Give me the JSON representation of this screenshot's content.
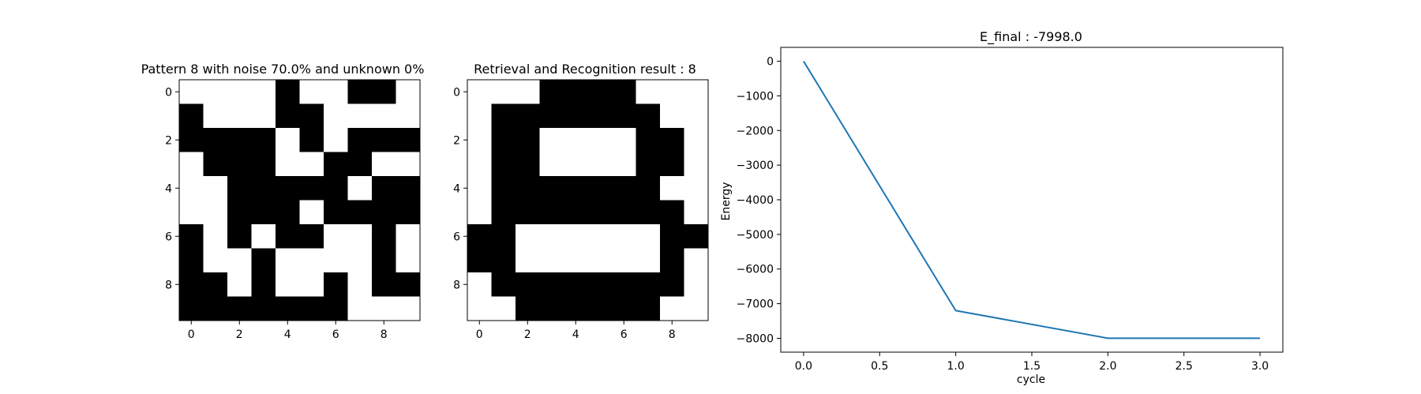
{
  "chart_data": [
    {
      "type": "heatmap",
      "title": "Pattern 8 with noise 70.0% and unknown 0%",
      "colors": {
        "1": "#000000",
        "0": "#ffffff"
      },
      "x_ticks": [
        "0",
        "2",
        "4",
        "6",
        "8"
      ],
      "y_ticks": [
        "0",
        "2",
        "4",
        "6",
        "8"
      ],
      "grid": [
        [
          0,
          0,
          0,
          0,
          1,
          0,
          0,
          1,
          1,
          0
        ],
        [
          1,
          0,
          0,
          0,
          1,
          1,
          0,
          0,
          0,
          0
        ],
        [
          1,
          1,
          1,
          1,
          0,
          1,
          0,
          1,
          1,
          1
        ],
        [
          0,
          1,
          1,
          1,
          0,
          0,
          1,
          1,
          0,
          0
        ],
        [
          0,
          0,
          1,
          1,
          1,
          1,
          1,
          0,
          1,
          1
        ],
        [
          0,
          0,
          1,
          1,
          1,
          0,
          1,
          1,
          1,
          1
        ],
        [
          1,
          0,
          1,
          0,
          1,
          1,
          0,
          0,
          1,
          0
        ],
        [
          1,
          0,
          0,
          1,
          0,
          0,
          0,
          0,
          1,
          0
        ],
        [
          1,
          1,
          0,
          1,
          0,
          0,
          1,
          0,
          1,
          1
        ],
        [
          1,
          1,
          1,
          1,
          1,
          1,
          1,
          0,
          0,
          0
        ]
      ]
    },
    {
      "type": "heatmap",
      "title": "Retrieval and Recognition result : 8",
      "colors": {
        "1": "#000000",
        "0": "#ffffff"
      },
      "x_ticks": [
        "0",
        "2",
        "4",
        "6",
        "8"
      ],
      "y_ticks": [
        "0",
        "2",
        "4",
        "6",
        "8"
      ],
      "grid": [
        [
          0,
          0,
          0,
          1,
          1,
          1,
          1,
          0,
          0,
          0
        ],
        [
          0,
          1,
          1,
          1,
          1,
          1,
          1,
          1,
          0,
          0
        ],
        [
          0,
          1,
          1,
          0,
          0,
          0,
          0,
          1,
          1,
          0
        ],
        [
          0,
          1,
          1,
          0,
          0,
          0,
          0,
          1,
          1,
          0
        ],
        [
          0,
          1,
          1,
          1,
          1,
          1,
          1,
          1,
          0,
          0
        ],
        [
          0,
          1,
          1,
          1,
          1,
          1,
          1,
          1,
          1,
          0
        ],
        [
          1,
          1,
          0,
          0,
          0,
          0,
          0,
          0,
          1,
          1
        ],
        [
          1,
          1,
          0,
          0,
          0,
          0,
          0,
          0,
          1,
          0
        ],
        [
          0,
          1,
          1,
          1,
          1,
          1,
          1,
          1,
          1,
          0
        ],
        [
          0,
          0,
          1,
          1,
          1,
          1,
          1,
          1,
          0,
          0
        ]
      ]
    },
    {
      "type": "line",
      "title": "E_final : -7998.0",
      "xlabel": "cycle",
      "ylabel": "Energy",
      "x": [
        0,
        1,
        2,
        3
      ],
      "series": [
        {
          "values": [
            0,
            -7200,
            -7998,
            -7998
          ],
          "color": "#1f77b4"
        }
      ],
      "xlim": [
        -0.15,
        3.15
      ],
      "ylim": [
        -8400,
        400
      ],
      "x_ticks": [
        0,
        0.5,
        1,
        1.5,
        2,
        2.5,
        3
      ],
      "x_tick_labels": [
        "0.0",
        "0.5",
        "1.0",
        "1.5",
        "2.0",
        "2.5",
        "3.0"
      ],
      "y_ticks": [
        0,
        -1000,
        -2000,
        -3000,
        -4000,
        -5000,
        -6000,
        -7000,
        -8000
      ],
      "y_tick_labels": [
        "0",
        "−1000",
        "−2000",
        "−3000",
        "−4000",
        "−5000",
        "−6000",
        "−7000",
        "−8000"
      ]
    }
  ]
}
